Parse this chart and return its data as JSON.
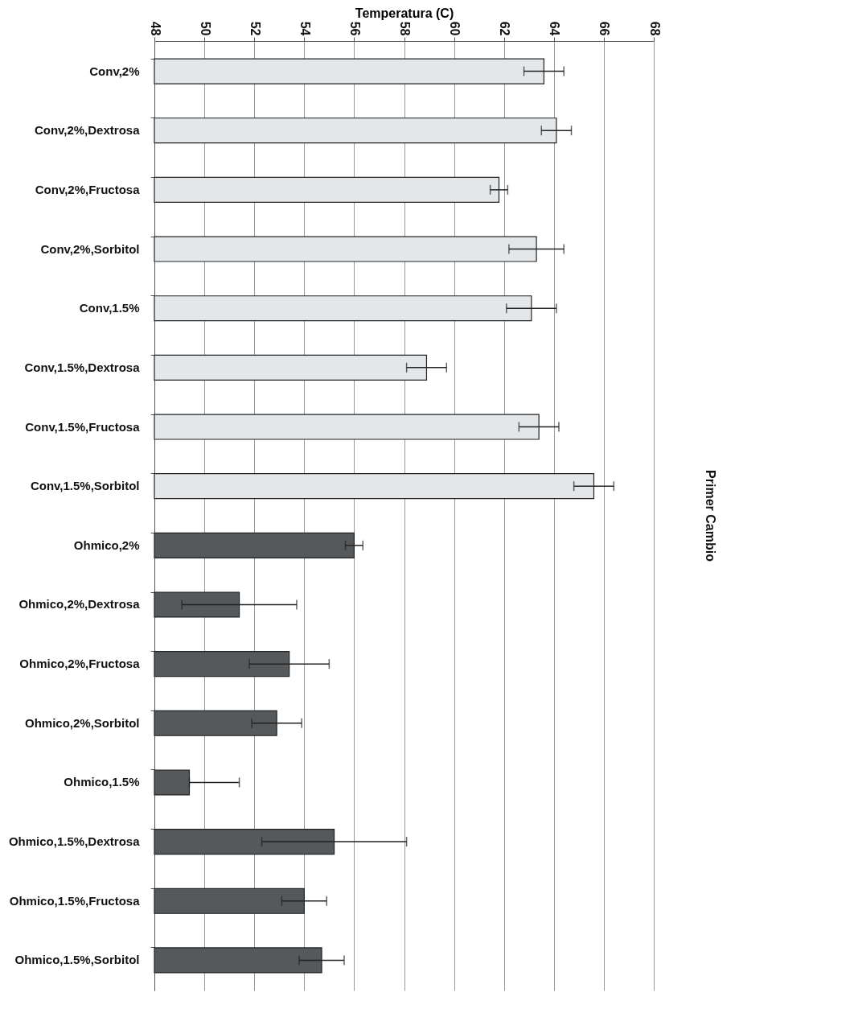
{
  "chart_data": {
    "type": "bar",
    "orientation": "horizontal",
    "xlabel": "Temperatura (C)",
    "annotations": [
      "Primer Cambio"
    ],
    "categories": [
      "Conv,2%",
      "Conv,2%,Dextrosa",
      "Conv,2%,Fructosa",
      "Conv,2%,Sorbitol",
      "Conv,1.5%",
      "Conv,1.5%,Dextrosa",
      "Conv,1.5%,Fructosa",
      "Conv,1.5%,Sorbitol",
      "Ohmico,2%",
      "Ohmico,2%,Dextrosa",
      "Ohmico,2%,Fructosa",
      "Ohmico,2%,Sorbitol",
      "Ohmico,1.5%",
      "Ohmico,1.5%,Dextrosa",
      "Ohmico,1.5%,Fructosa",
      "Ohmico,1.5%,Sorbitol"
    ],
    "values": [
      63.6,
      64.1,
      61.8,
      63.3,
      63.1,
      58.9,
      63.4,
      65.6,
      56.0,
      51.4,
      53.4,
      52.9,
      49.4,
      55.2,
      54.0,
      54.7
    ],
    "errors": [
      0.8,
      0.6,
      0.35,
      1.1,
      1.0,
      0.8,
      0.8,
      0.8,
      0.35,
      2.3,
      1.6,
      1.0,
      [
        49.4,
        51.4
      ],
      2.9,
      0.9,
      0.9
    ],
    "colors": [
      "#e4e7e9",
      "#e4e7e9",
      "#e4e7e9",
      "#e4e7e9",
      "#e4e7e9",
      "#e4e7e9",
      "#e4e7e9",
      "#e4e7e9",
      "#55595b",
      "#55595b",
      "#55595b",
      "#55595b",
      "#55595b",
      "#55595b",
      "#55595b",
      "#55595b"
    ],
    "xlim": [
      48,
      68
    ],
    "xticks": [
      48,
      50,
      52,
      54,
      56,
      58,
      60,
      62,
      64,
      66,
      68
    ],
    "grid": "x"
  }
}
